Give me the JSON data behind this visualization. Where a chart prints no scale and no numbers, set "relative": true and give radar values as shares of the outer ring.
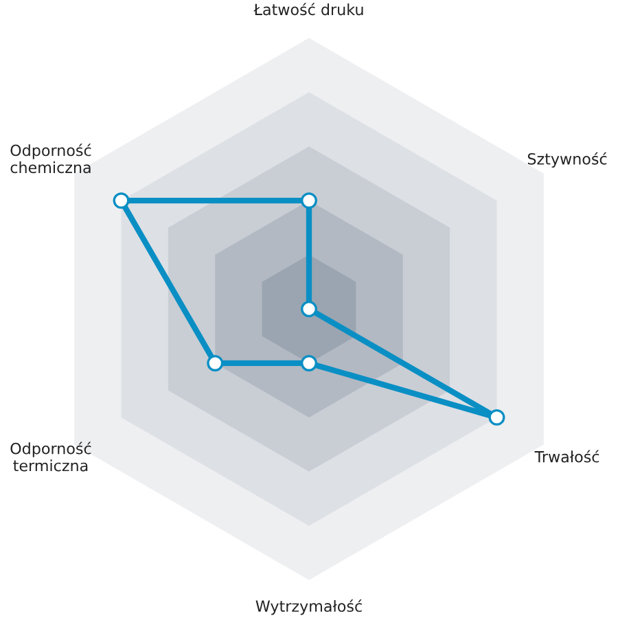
{
  "chart_data": {
    "type": "radar",
    "relative": true,
    "marker": "circle",
    "categories": [
      "Łatwość druku",
      "Sztywność",
      "Trwałość",
      "Wytrzymałość",
      "Odporność\ntermiczna",
      "Odporność\nchemiczna"
    ],
    "series": [
      {
        "color": "#0a8fc4",
        "values": [
          0.4,
          0,
          0.8,
          0.2,
          0.4,
          0.8
        ]
      }
    ]
  }
}
